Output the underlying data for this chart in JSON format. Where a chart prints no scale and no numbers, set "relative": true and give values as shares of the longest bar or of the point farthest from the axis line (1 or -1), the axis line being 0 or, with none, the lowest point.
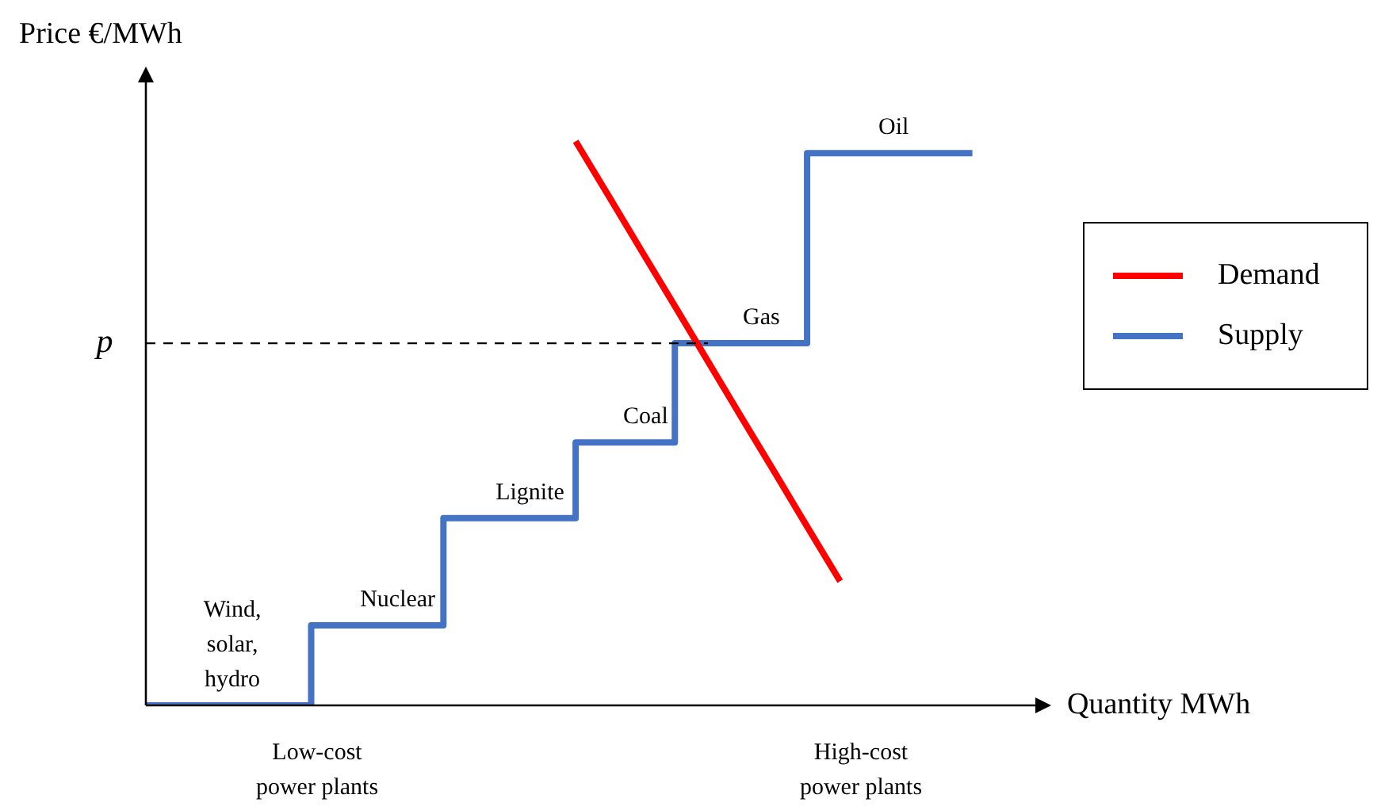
{
  "chart_data": {
    "type": "line",
    "relative": true,
    "xlabel": "Quantity MWh",
    "ylabel": "Price €/MWh",
    "tick_labels": false,
    "legend": "right",
    "marker": "none",
    "categories": [
      null,
      null,
      null,
      null,
      null,
      null,
      null,
      null,
      null,
      null,
      null,
      null,
      null,
      null,
      null,
      null,
      null,
      null,
      null,
      null,
      null,
      null,
      null,
      null,
      null,
      null,
      null,
      null
    ],
    "series": [
      {
        "name": "Demand",
        "color": "#ff0000",
        "type": "line",
        "values": [
          null,
          null,
          null,
          null,
          null,
          null,
          null,
          null,
          null,
          null,
          null,
          null,
          null,
          1,
          0.903,
          0.805,
          0.708,
          0.61,
          0.512,
          0.415,
          0.317,
          0.22,
          null,
          null,
          null,
          null,
          null,
          null
        ]
      },
      {
        "name": "Supply",
        "color": "#4472c4",
        "type": "step",
        "values": [
          0,
          0,
          0,
          0,
          0,
          0,
          0.142,
          0.142,
          0.142,
          0.142,
          0.332,
          0.332,
          0.332,
          0.332,
          0.466,
          0.466,
          0.466,
          0.642,
          0.642,
          0.642,
          0.642,
          0.979,
          0.979,
          0.979,
          0.979,
          0.979,
          null,
          null
        ]
      }
    ],
    "ref_lines": [
      {
        "axis": "y",
        "value": 0.642,
        "label": "p",
        "line_style": "dashed"
      }
    ],
    "annotations": [
      "Wind,\nsolar,\nhydro",
      "Nuclear",
      "Lignite",
      "Coal",
      "Gas",
      "Oil",
      "Low-cost\npower plants",
      "High-cost\npower plants"
    ]
  }
}
